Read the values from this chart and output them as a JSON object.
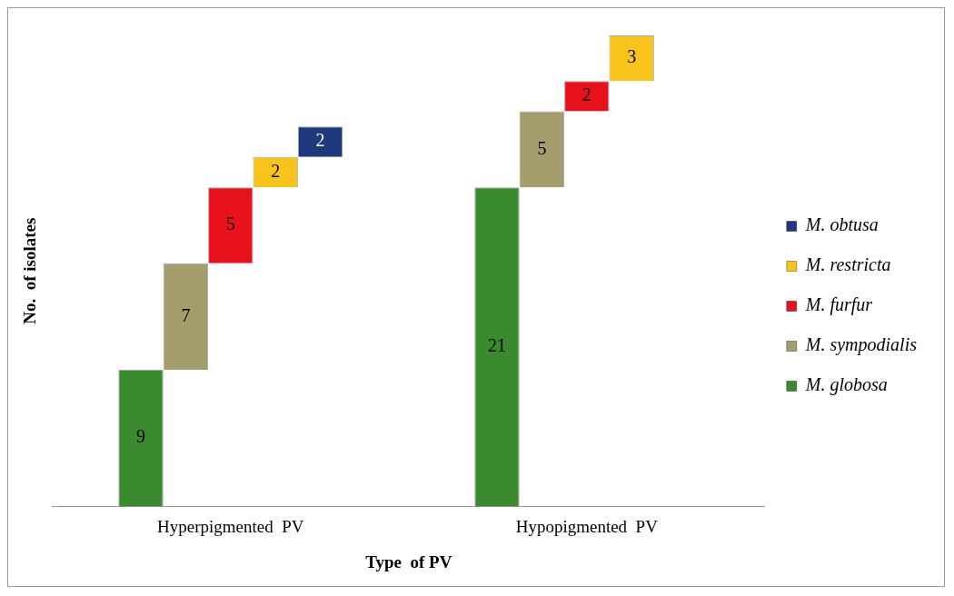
{
  "chart_data": {
    "type": "bar",
    "stacked": true,
    "xlabel": "Type  of PV",
    "ylabel": "No.  of isolates",
    "categories": [
      "Hyperpigmented  PV",
      "Hypopigmented  PV"
    ],
    "series": [
      {
        "name": "M. globosa",
        "color": "#3a8a2e",
        "values": [
          9,
          21
        ]
      },
      {
        "name": "M. sympodialis",
        "color": "#a59c6c",
        "values": [
          7,
          5
        ]
      },
      {
        "name": "M. furfur",
        "color": "#e8121c",
        "values": [
          5,
          2
        ]
      },
      {
        "name": "M. restricta",
        "color": "#f8c41c",
        "values": [
          2,
          3
        ]
      },
      {
        "name": "M. obtusa",
        "color": "#1f3a7c",
        "values": [
          2,
          null
        ]
      }
    ],
    "data_labels": true,
    "legend": "right",
    "grid": false
  }
}
